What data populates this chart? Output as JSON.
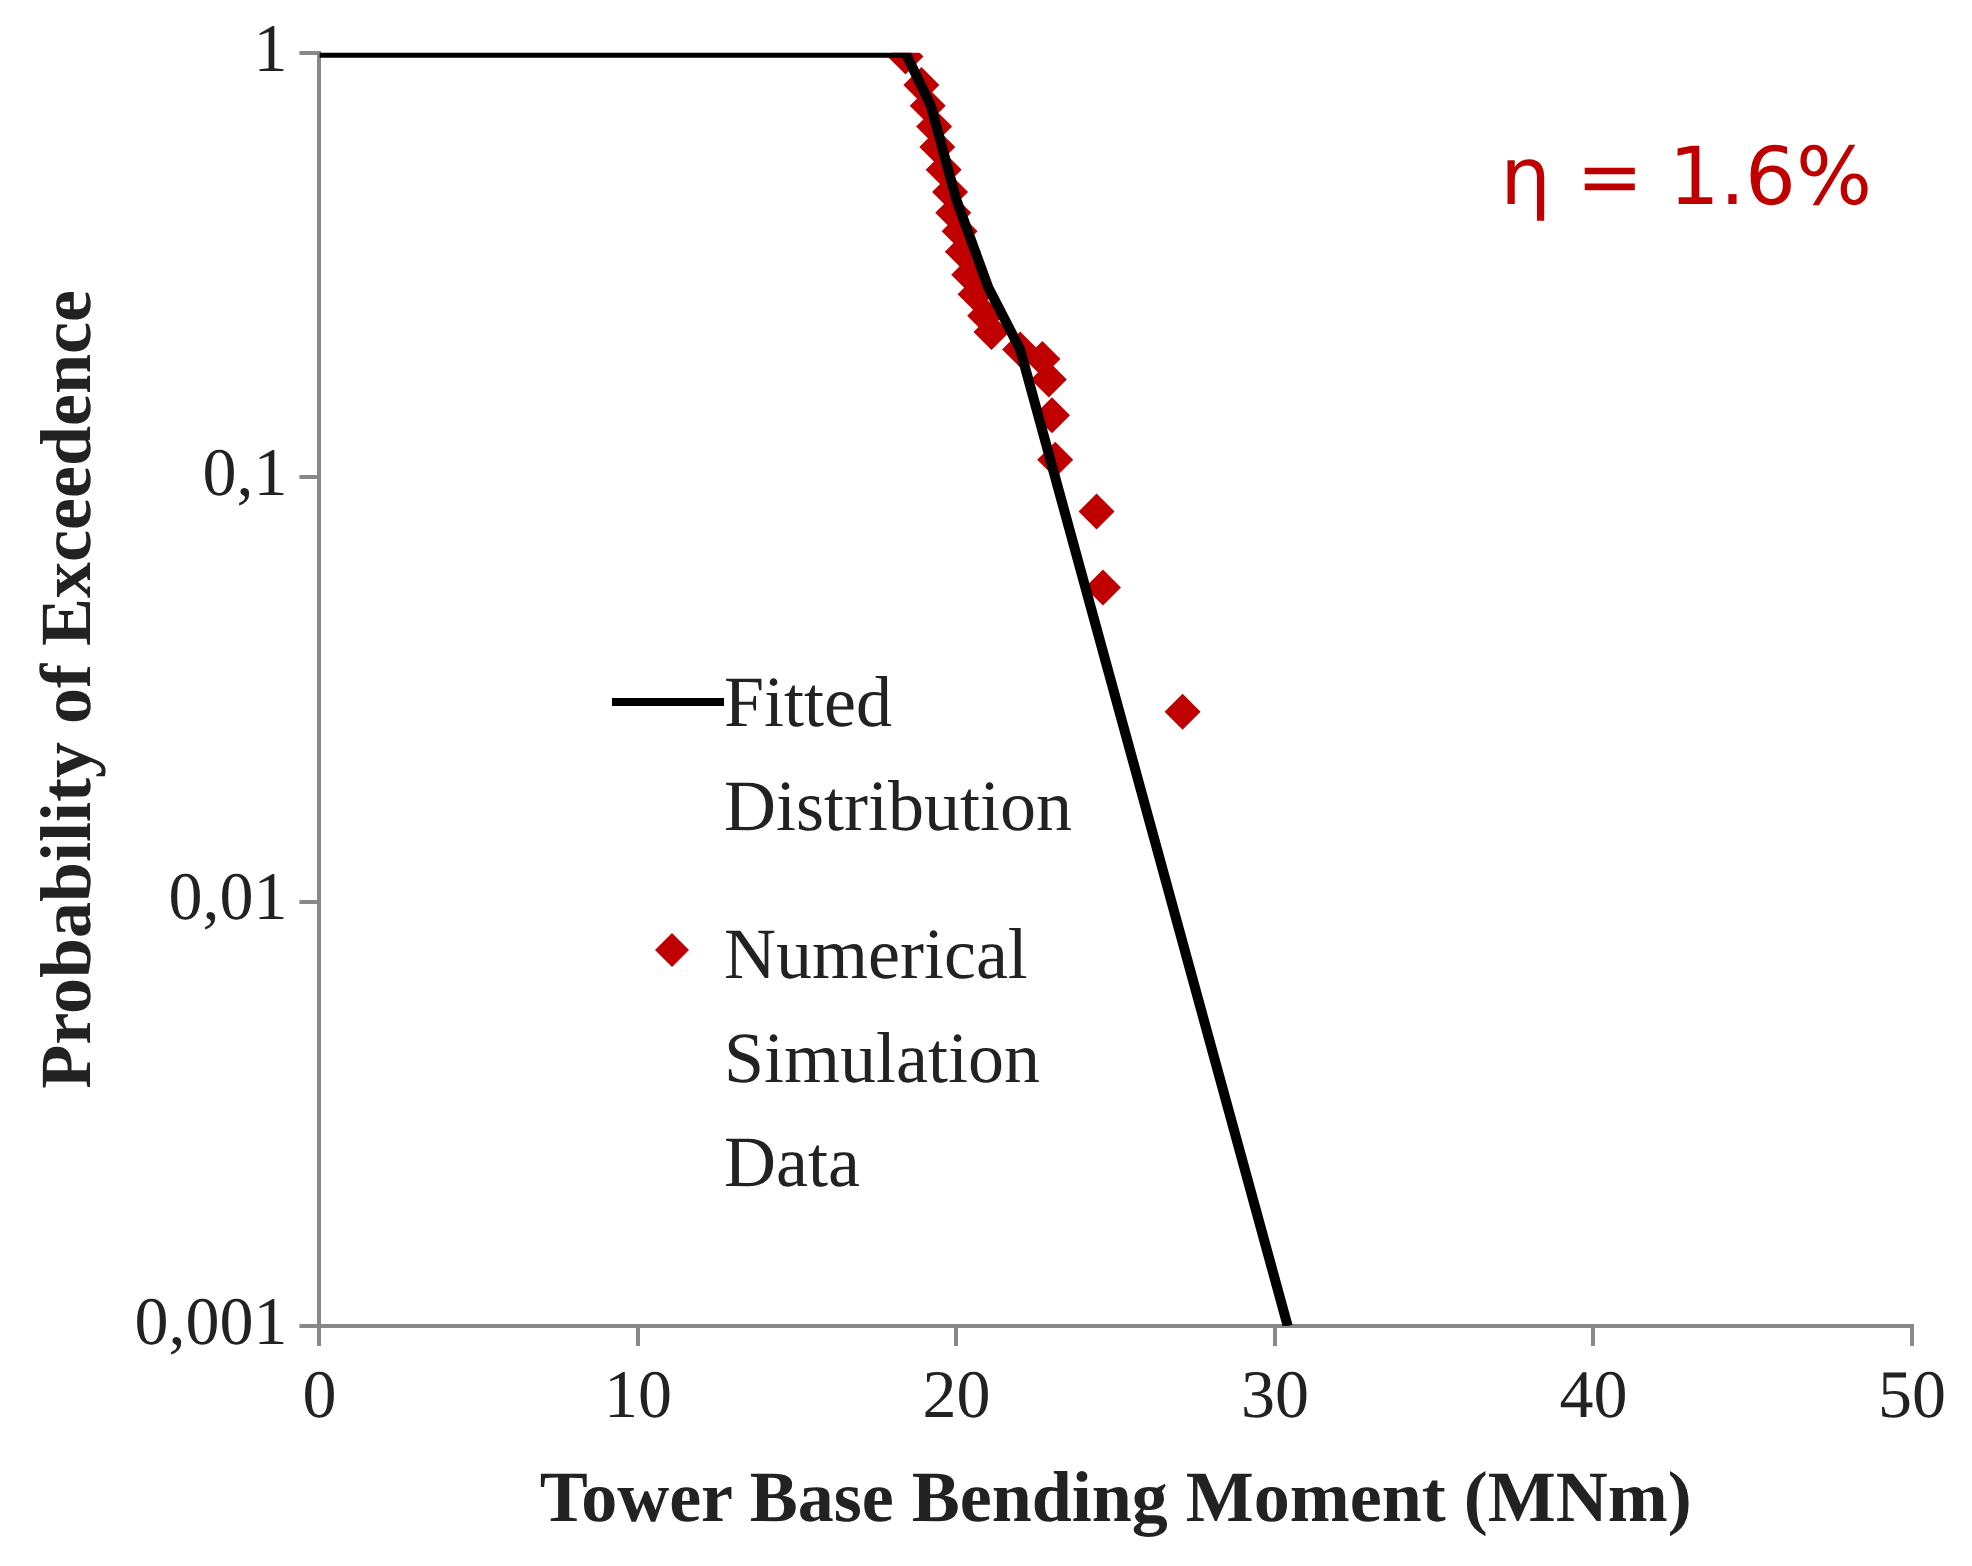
{
  "chart_data": {
    "type": "scatter",
    "xlabel": "Tower Base Bending Moment (MNm)",
    "ylabel": "Probability of Exceedence",
    "annotations": [
      "η = 1.6%"
    ],
    "xlim": [
      0,
      50
    ],
    "xticks": [
      0,
      10,
      20,
      30,
      40,
      50
    ],
    "ylim": [
      0.001,
      1
    ],
    "yticks": [
      {
        "value": 0.001,
        "label": "0,001"
      },
      {
        "value": 0.01,
        "label": "0,01"
      },
      {
        "value": 0.1,
        "label": "0,1"
      },
      {
        "value": 1,
        "label": "1"
      }
    ],
    "log": "y",
    "grid": false,
    "legend": "left",
    "series": [
      {
        "name": "Fitted Distribution",
        "type": "line",
        "color": "#000000",
        "marker": "none",
        "line_style": "solid",
        "x": [
          0,
          18.4,
          19.2,
          20.0,
          21.0,
          22.0,
          30.4
        ],
        "values": [
          1,
          1,
          0.75,
          0.45,
          0.28,
          0.2,
          0.001
        ]
      },
      {
        "name": "Numerical Simulation Data",
        "color": "#c00000",
        "marker": "diamond",
        "x": [
          18.4,
          18.9,
          19.1,
          19.3,
          19.4,
          19.6,
          19.8,
          19.9,
          20.1,
          20.2,
          20.4,
          20.6,
          20.9,
          21.1,
          22.0,
          22.7,
          22.9,
          23.0,
          23.1,
          24.4,
          24.6,
          27.1
        ],
        "values": [
          0.98,
          0.84,
          0.75,
          0.67,
          0.6,
          0.53,
          0.47,
          0.42,
          0.38,
          0.34,
          0.3,
          0.27,
          0.24,
          0.22,
          0.2,
          0.19,
          0.17,
          0.14,
          0.11,
          0.083,
          0.055,
          0.028
        ]
      }
    ]
  }
}
